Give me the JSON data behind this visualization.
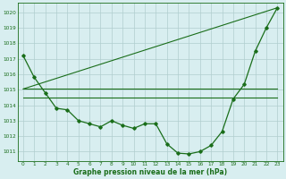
{
  "hours": [
    0,
    1,
    2,
    3,
    4,
    5,
    6,
    7,
    8,
    9,
    10,
    11,
    12,
    13,
    14,
    15,
    16,
    17,
    18,
    19,
    20,
    21,
    22,
    23
  ],
  "pressure_main": [
    1017.2,
    1015.8,
    1014.8,
    1013.8,
    1013.7,
    1013.0,
    1012.8,
    1012.6,
    1013.0,
    1012.7,
    1012.5,
    1012.8,
    1012.8,
    1011.5,
    1010.9,
    1010.85,
    1011.0,
    1011.4,
    1012.3,
    1014.4,
    1015.35,
    1017.5,
    1019.0,
    1020.3
  ],
  "pressure_ref1": [
    1015.05,
    1015.05,
    1015.05,
    1015.05,
    1015.05,
    1015.05,
    1015.05,
    1015.05,
    1015.05,
    1015.05,
    1015.05,
    1015.05,
    1015.05,
    1015.05,
    1015.05,
    1015.05,
    1015.05,
    1015.05,
    1015.05,
    1015.05,
    1015.05,
    1015.05,
    1015.05,
    1015.05
  ],
  "pressure_ref2": [
    1014.5,
    1014.5,
    1014.5,
    1014.5,
    1014.5,
    1014.5,
    1014.5,
    1014.5,
    1014.5,
    1014.5,
    1014.5,
    1014.5,
    1014.5,
    1014.5,
    1014.5,
    1014.5,
    1014.5,
    1014.5,
    1014.5,
    1014.5,
    1014.5,
    1014.5,
    1014.5,
    1014.5
  ],
  "pressure_trend_x": [
    0,
    23
  ],
  "pressure_trend_y": [
    1015.05,
    1020.3
  ],
  "line_color": "#1a6e1a",
  "bg_color": "#d8eef0",
  "grid_color": "#b0cece",
  "ylabel_ticks": [
    1011,
    1012,
    1013,
    1014,
    1015,
    1016,
    1017,
    1018,
    1019,
    1020
  ],
  "ylim": [
    1010.4,
    1020.6
  ],
  "xlim": [
    -0.5,
    23.5
  ],
  "xlabel": "Graphe pression niveau de la mer (hPa)",
  "figsize": [
    3.2,
    2.0
  ],
  "dpi": 100
}
